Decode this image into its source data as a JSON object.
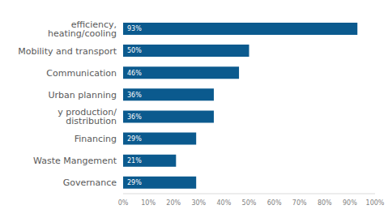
{
  "chart_data": {
    "type": "bar",
    "orientation": "horizontal",
    "categories": [
      "efficiency, heating/cooling",
      "Mobility and transport",
      "Communication",
      "Urban planning",
      "y production/ distribution",
      "Financing",
      "Waste Mangement",
      "Governance"
    ],
    "values": [
      93,
      50,
      46,
      36,
      36,
      29,
      21,
      29
    ],
    "value_labels": [
      "93%",
      "50%",
      "46%",
      "36%",
      "36%",
      "29%",
      "21%",
      "29%"
    ],
    "data_labels": true,
    "color": "#0b5a8e",
    "xlim": [
      0,
      100
    ],
    "xticks": [
      {
        "value": 0,
        "label": "0%"
      },
      {
        "value": 10,
        "label": "10%"
      },
      {
        "value": 20,
        "label": "20%"
      },
      {
        "value": 30,
        "label": "30%"
      },
      {
        "value": 40,
        "label": "40%"
      },
      {
        "value": 50,
        "label": "50%"
      },
      {
        "value": 60,
        "label": "60%"
      },
      {
        "value": 70,
        "label": "70%"
      },
      {
        "value": 80,
        "label": "80%"
      },
      {
        "value": 90,
        "label": "90%"
      },
      {
        "value": 100,
        "label": "100%"
      }
    ],
    "grid": false
  }
}
